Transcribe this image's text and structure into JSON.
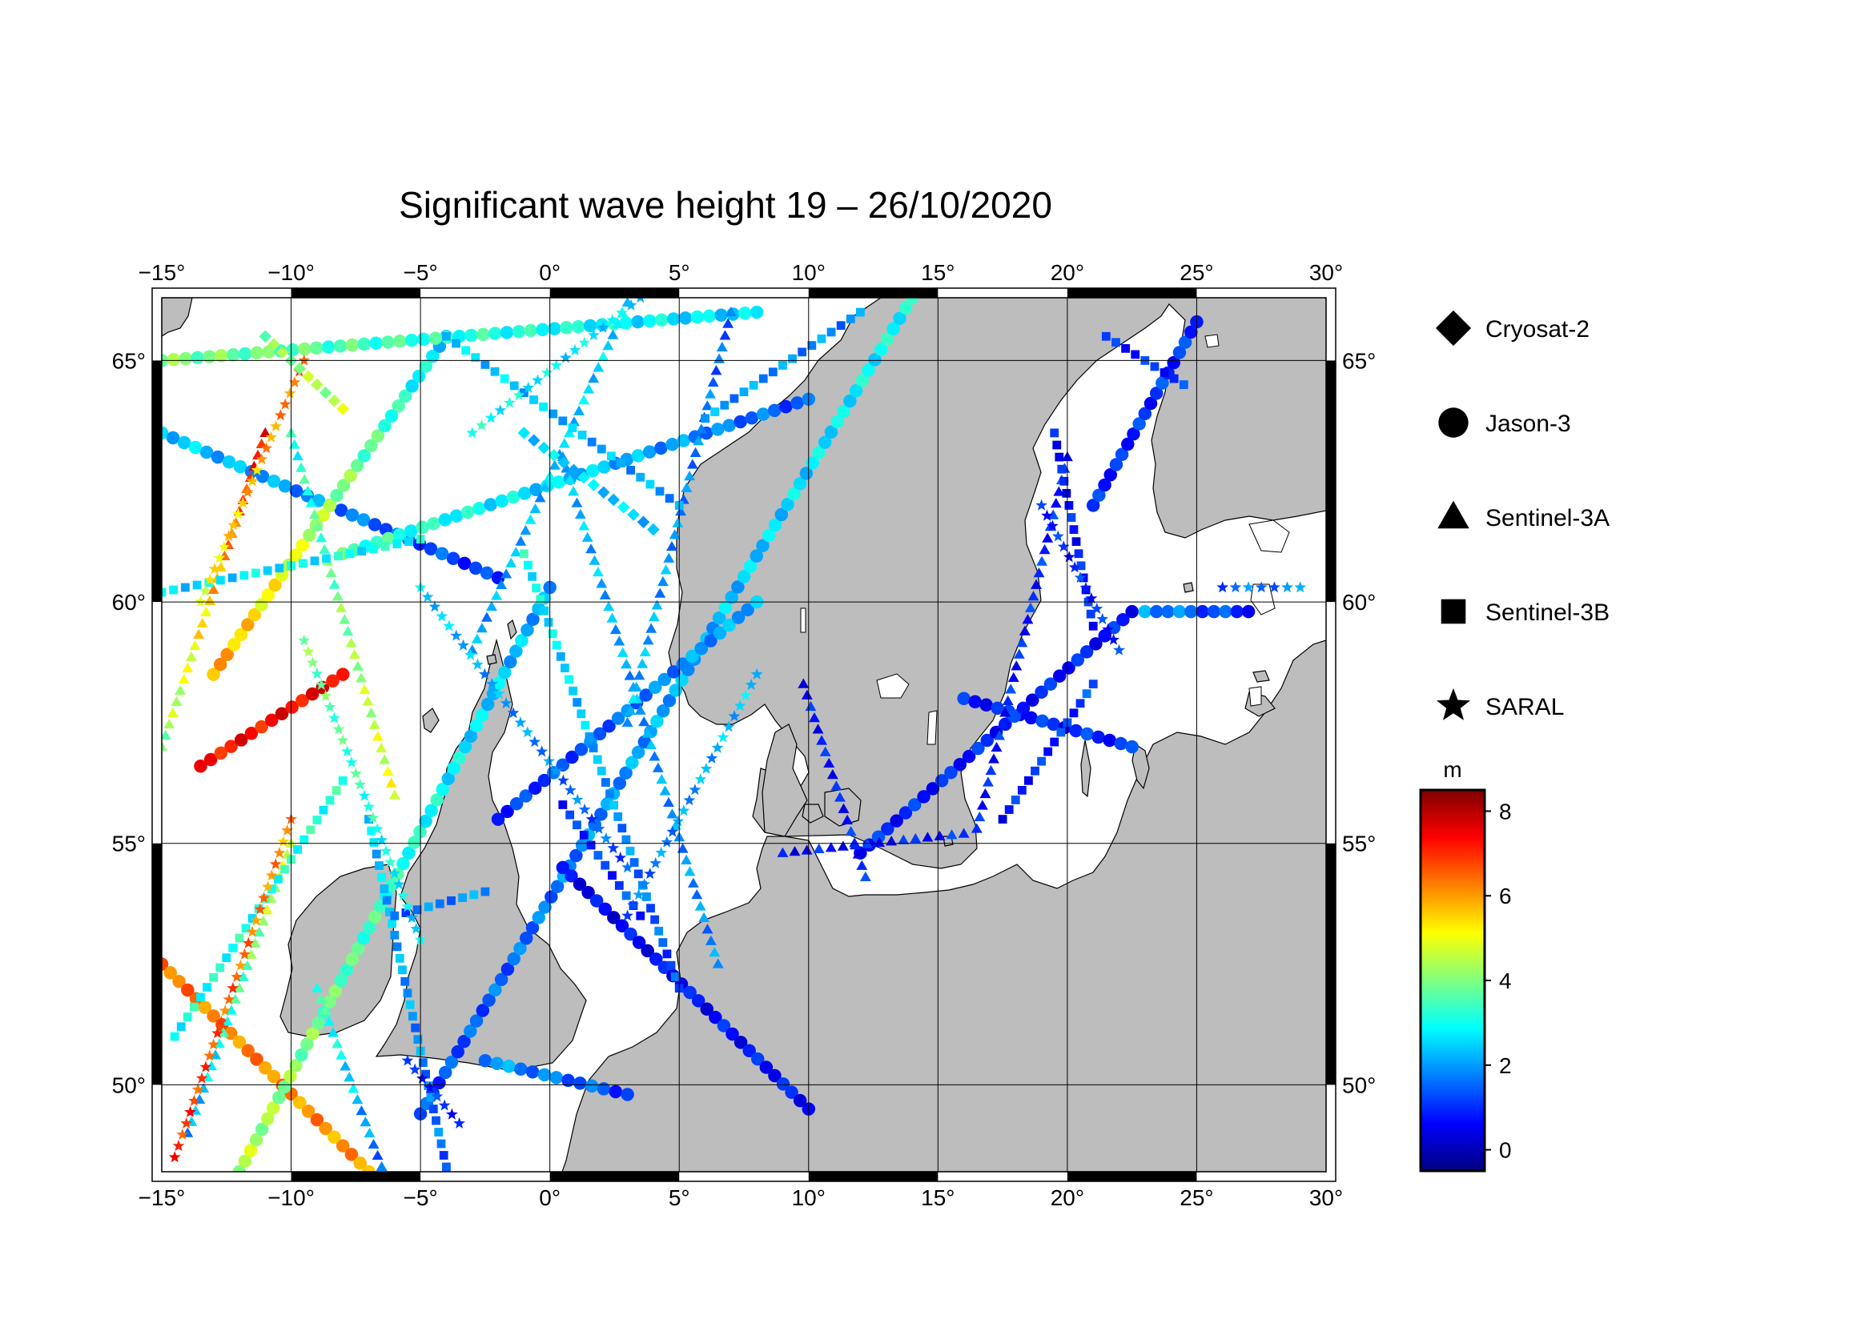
{
  "title": "Significant wave height 19 – 26/10/2020",
  "map": {
    "lon_range": [
      -15,
      30
    ],
    "lat_range": [
      48.2,
      66.3
    ],
    "lon_ticks": [
      -15,
      -10,
      -5,
      0,
      5,
      10,
      15,
      20,
      25,
      30
    ],
    "lat_ticks": [
      50,
      55,
      60,
      65
    ],
    "lon_tick_labels": [
      "−15°",
      "−10°",
      "−5°",
      "0°",
      "5°",
      "10°",
      "15°",
      "20°",
      "25°",
      "30°"
    ],
    "lat_tick_labels": [
      "50°",
      "55°",
      "60°",
      "65°"
    ],
    "grid": true,
    "land_color": "#bdbdbd",
    "sea_color": "#ffffff"
  },
  "legend": {
    "position": "right",
    "items": [
      {
        "label": "Cryosat-2",
        "symbol": "diamond"
      },
      {
        "label": "Jason-3",
        "symbol": "circle"
      },
      {
        "label": "Sentinel-3A",
        "symbol": "triangle"
      },
      {
        "label": "Sentinel-3B",
        "symbol": "square"
      },
      {
        "label": "SARAL",
        "symbol": "star"
      }
    ]
  },
  "colorbar": {
    "unit_label": "m",
    "range": [
      -0.5,
      8.5
    ],
    "ticks": [
      0,
      2,
      4,
      6,
      8
    ],
    "tick_labels": [
      "0",
      "2",
      "4",
      "6",
      "8"
    ],
    "colormap": "jet"
  },
  "chart_data": {
    "type": "scatter",
    "xlabel": "",
    "ylabel": "",
    "xlim": [
      -15,
      30
    ],
    "ylim": [
      48.2,
      66.3
    ],
    "value_unit": "m",
    "tracks": [
      {
        "satellite": "Jason-3",
        "from": [
          -5,
          49.4
        ],
        "to": [
          14,
          66.3
        ],
        "h0": 1.2,
        "h1": 3.0
      },
      {
        "satellite": "Jason-3",
        "from": [
          -15,
          52.5
        ],
        "to": [
          -7,
          48.2
        ],
        "h0": 6.4,
        "h1": 6.0
      },
      {
        "satellite": "Jason-3",
        "from": [
          -12,
          48.2
        ],
        "to": [
          0,
          60.3
        ],
        "h0": 4.5,
        "h1": 2.0
      },
      {
        "satellite": "Jason-3",
        "from": [
          0.5,
          54.5
        ],
        "to": [
          10,
          49.5
        ],
        "h0": 0.5,
        "h1": 0.8
      },
      {
        "satellite": "Jason-3",
        "from": [
          -15,
          63.5
        ],
        "to": [
          -2,
          60.5
        ],
        "h0": 2.5,
        "h1": 1.0
      },
      {
        "satellite": "Jason-3",
        "from": [
          -13,
          58.5
        ],
        "to": [
          -4,
          65.5
        ],
        "h0": 6.0,
        "h1": 2.5
      },
      {
        "satellite": "Jason-3",
        "from": [
          -8,
          61
        ],
        "to": [
          10,
          64.2
        ],
        "h0": 3.5,
        "h1": 1.3
      },
      {
        "satellite": "Jason-3",
        "from": [
          -2,
          55.5
        ],
        "to": [
          8,
          60
        ],
        "h0": 1.0,
        "h1": 2.2
      },
      {
        "satellite": "Jason-3",
        "from": [
          -15,
          65
        ],
        "to": [
          8,
          66
        ],
        "h0": 4.0,
        "h1": 2.5
      },
      {
        "satellite": "Jason-3",
        "from": [
          16,
          58
        ],
        "to": [
          22.5,
          57
        ],
        "h0": 0.8,
        "h1": 1.0
      },
      {
        "satellite": "Jason-3",
        "from": [
          12,
          54.8
        ],
        "to": [
          22.5,
          59.8
        ],
        "h0": 0.9,
        "h1": 0.8
      },
      {
        "satellite": "Jason-3",
        "from": [
          21,
          62
        ],
        "to": [
          25,
          65.8
        ],
        "h0": 0.9,
        "h1": 1.1
      },
      {
        "satellite": "Jason-3",
        "from": [
          23,
          59.8
        ],
        "to": [
          27,
          59.8
        ],
        "h0": 2.0,
        "h1": 0.9
      },
      {
        "satellite": "Jason-3",
        "from": [
          -2.5,
          50.5
        ],
        "to": [
          3,
          49.8
        ],
        "h0": 2.0,
        "h1": 1.2
      },
      {
        "satellite": "Jason-3",
        "from": [
          -13.5,
          56.6
        ],
        "to": [
          -8,
          58.5
        ],
        "h0": 7.2,
        "h1": 7.5
      },
      {
        "satellite": "Sentinel-3A",
        "from": [
          -15,
          57
        ],
        "to": [
          -11,
          63.5
        ],
        "h0": 4.0,
        "h1": 7.5
      },
      {
        "satellite": "Sentinel-3A",
        "from": [
          -14,
          49
        ],
        "to": [
          -10,
          55
        ],
        "h0": 2.0,
        "h1": 5.0
      },
      {
        "satellite": "Sentinel-3A",
        "from": [
          -10,
          63.5
        ],
        "to": [
          -6,
          56
        ],
        "h0": 3.0,
        "h1": 5.0
      },
      {
        "satellite": "Sentinel-3A",
        "from": [
          0.5,
          63
        ],
        "to": [
          6.5,
          52.5
        ],
        "h0": 2.3,
        "h1": 1.8
      },
      {
        "satellite": "Sentinel-3A",
        "from": [
          -3,
          59
        ],
        "to": [
          3,
          66.2
        ],
        "h0": 2.0,
        "h1": 2.6
      },
      {
        "satellite": "Sentinel-3A",
        "from": [
          7,
          66
        ],
        "to": [
          3,
          57.5
        ],
        "h0": 1.4,
        "h1": 2.3
      },
      {
        "satellite": "Sentinel-3A",
        "from": [
          9.8,
          58.3
        ],
        "to": [
          12.2,
          54.3
        ],
        "h0": 0.7,
        "h1": 0.9
      },
      {
        "satellite": "Sentinel-3A",
        "from": [
          16.5,
          55.3
        ],
        "to": [
          20,
          63
        ],
        "h0": 0.8,
        "h1": 1.0
      },
      {
        "satellite": "Sentinel-3A",
        "from": [
          9,
          54.8
        ],
        "to": [
          16,
          55.2
        ],
        "h0": 0.7,
        "h1": 0.9
      },
      {
        "satellite": "Sentinel-3A",
        "from": [
          -9,
          52
        ],
        "to": [
          -6.5,
          48.3
        ],
        "h0": 3.5,
        "h1": 1.5
      },
      {
        "satellite": "Sentinel-3B",
        "from": [
          -15,
          60.2
        ],
        "to": [
          -5,
          61.3
        ],
        "h0": 2.5,
        "h1": 3.0
      },
      {
        "satellite": "Sentinel-3B",
        "from": [
          -14.5,
          51
        ],
        "to": [
          -8,
          56.3
        ],
        "h0": 3.0,
        "h1": 3.2
      },
      {
        "satellite": "Sentinel-3B",
        "from": [
          -7,
          55.5
        ],
        "to": [
          -4,
          48.3
        ],
        "h0": 2.5,
        "h1": 1.5
      },
      {
        "satellite": "Sentinel-3B",
        "from": [
          -1,
          61
        ],
        "to": [
          5,
          52
        ],
        "h0": 3.0,
        "h1": 1.2
      },
      {
        "satellite": "Sentinel-3B",
        "from": [
          -4,
          65.5
        ],
        "to": [
          5,
          62
        ],
        "h0": 2.5,
        "h1": 2.0
      },
      {
        "satellite": "Sentinel-3B",
        "from": [
          6,
          63.8
        ],
        "to": [
          12,
          66
        ],
        "h0": 2.0,
        "h1": 1.8
      },
      {
        "satellite": "Sentinel-3B",
        "from": [
          19.5,
          63.5
        ],
        "to": [
          21,
          59.5
        ],
        "h0": 0.7,
        "h1": 0.9
      },
      {
        "satellite": "Sentinel-3B",
        "from": [
          17.5,
          55.5
        ],
        "to": [
          21,
          58.3
        ],
        "h0": 0.8,
        "h1": 1.2
      },
      {
        "satellite": "Sentinel-3B",
        "from": [
          21.5,
          65.5
        ],
        "to": [
          24.5,
          64.5
        ],
        "h0": 0.9,
        "h1": 1.0
      },
      {
        "satellite": "Sentinel-3B",
        "from": [
          -6,
          53.5
        ],
        "to": [
          -2.5,
          54
        ],
        "h0": 1.5,
        "h1": 2.0
      },
      {
        "satellite": "Sentinel-3B",
        "from": [
          0.5,
          55.8
        ],
        "to": [
          3.5,
          53.5
        ],
        "h0": 1.0,
        "h1": 1.2
      },
      {
        "satellite": "SARAL",
        "from": [
          -14.5,
          48.5
        ],
        "to": [
          -10,
          55.5
        ],
        "h0": 7.0,
        "h1": 6.0
      },
      {
        "satellite": "SARAL",
        "from": [
          -13.5,
          60
        ],
        "to": [
          -9.5,
          65
        ],
        "h0": 5.0,
        "h1": 6.5
      },
      {
        "satellite": "SARAL",
        "from": [
          -9.5,
          59.2
        ],
        "to": [
          -5,
          53
        ],
        "h0": 4.0,
        "h1": 2.5
      },
      {
        "satellite": "SARAL",
        "from": [
          -5,
          60.3
        ],
        "to": [
          3,
          54.5
        ],
        "h0": 2.5,
        "h1": 1.3
      },
      {
        "satellite": "SARAL",
        "from": [
          3,
          53.5
        ],
        "to": [
          8,
          58.5
        ],
        "h0": 1.5,
        "h1": 2.5
      },
      {
        "satellite": "SARAL",
        "from": [
          -3,
          63.5
        ],
        "to": [
          3.5,
          66.3
        ],
        "h0": 3.0,
        "h1": 2.5
      },
      {
        "satellite": "SARAL",
        "from": [
          19,
          62
        ],
        "to": [
          22,
          59
        ],
        "h0": 0.9,
        "h1": 1.0
      },
      {
        "satellite": "SARAL",
        "from": [
          26,
          60.3
        ],
        "to": [
          29,
          60.3
        ],
        "h0": 1.5,
        "h1": 1.8
      },
      {
        "satellite": "SARAL",
        "from": [
          -5.5,
          50.5
        ],
        "to": [
          -3.5,
          49.2
        ],
        "h0": 0.8,
        "h1": 1.0
      },
      {
        "satellite": "Cryosat-2",
        "from": [
          -1,
          63.5
        ],
        "to": [
          4,
          61.5
        ],
        "h0": 2.6,
        "h1": 2.4
      },
      {
        "satellite": "Cryosat-2",
        "from": [
          -11,
          65.5
        ],
        "to": [
          -8,
          64
        ],
        "h0": 4.0,
        "h1": 4.5
      }
    ]
  }
}
